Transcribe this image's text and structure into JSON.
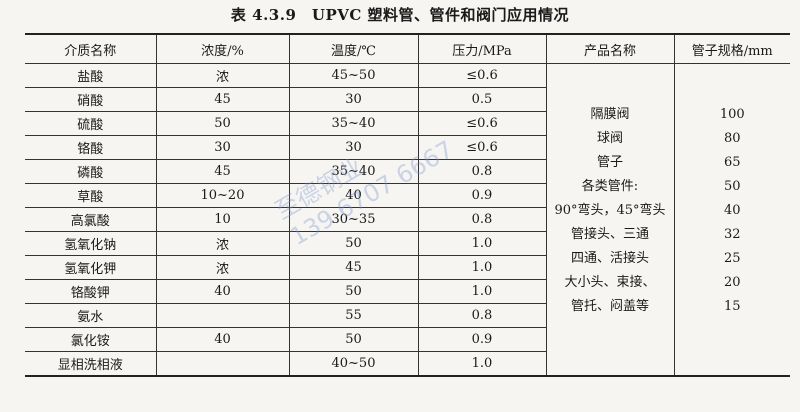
{
  "title": "表 4.3.9　UPVC 塑料管、管件和阀门应用情况",
  "headers": [
    "介质名称",
    "浓度/%",
    "温度/℃",
    "压力/MPa",
    "产品名称",
    "管子规格/mm"
  ],
  "rows": [
    {
      "medium": "盐酸",
      "concentration": "浓",
      "temperature": "45~50",
      "pressure": "≤0.6"
    },
    {
      "medium": "硝酸",
      "concentration": "45",
      "temperature": "30",
      "pressure": "0.5"
    },
    {
      "medium": "硫酸",
      "concentration": "50",
      "temperature": "35~40",
      "pressure": "≤0.6"
    },
    {
      "medium": "铬酸",
      "concentration": "30",
      "temperature": "30",
      "pressure": "≤0.6"
    },
    {
      "medium": "磷酸",
      "concentration": "45",
      "temperature": "35~40",
      "pressure": "0.8"
    },
    {
      "medium": "草酸",
      "concentration": "10~20",
      "temperature": "40",
      "pressure": "0.9"
    },
    {
      "medium": "高氯酸",
      "concentration": "10",
      "temperature": "30~35",
      "pressure": "0.8"
    },
    {
      "medium": "氢氧化钠",
      "concentration": "浓",
      "temperature": "50",
      "pressure": "1.0"
    },
    {
      "medium": "氢氧化钾",
      "concentration": "浓",
      "temperature": "45",
      "pressure": "1.0"
    },
    {
      "medium": "铬酸钾",
      "concentration": "40",
      "temperature": "50",
      "pressure": "1.0"
    },
    {
      "medium": "氨水",
      "concentration": "",
      "temperature": "55",
      "pressure": "0.8"
    },
    {
      "medium": "氯化铵",
      "concentration": "40",
      "temperature": "50",
      "pressure": "0.9"
    },
    {
      "medium": "显相洗相液",
      "concentration": "",
      "temperature": "40~50",
      "pressure": "1.0"
    }
  ],
  "products": [
    "隔膜阀",
    "球阀",
    "管子",
    "各类管件:",
    "90°弯头，45°弯头",
    "管接头、三通",
    "四通、活接头",
    "大小头、束接、",
    "管托、闷盖等"
  ],
  "pipe_sizes": [
    "100",
    "80",
    "65",
    "50",
    "40",
    "32",
    "25",
    "20",
    "15"
  ],
  "watermark": {
    "line1": "至德钢业",
    "line2": "139 6707 6667"
  }
}
